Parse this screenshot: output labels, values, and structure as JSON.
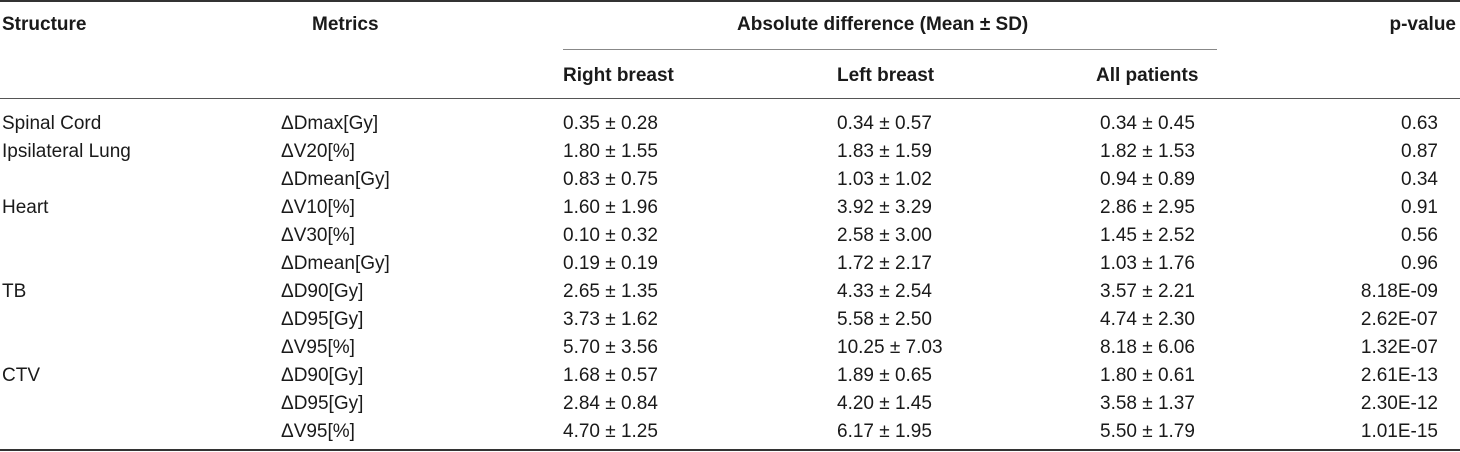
{
  "table": {
    "headers": {
      "structure": "Structure",
      "metrics": "Metrics",
      "group": "Absolute difference (Mean ± SD)",
      "pvalue": "p-value",
      "right_breast": "Right breast",
      "left_breast": "Left breast",
      "all_patients": "All patients"
    },
    "rows": [
      {
        "structure": "Spinal Cord",
        "metric": "ΔDmax[Gy]",
        "right": "0.35 ± 0.28",
        "left": "0.34 ± 0.57",
        "all": "0.34 ± 0.45",
        "p": "0.63"
      },
      {
        "structure": "Ipsilateral Lung",
        "metric": "ΔV20[%]",
        "right": "1.80 ± 1.55",
        "left": "1.83 ± 1.59",
        "all": "1.82 ± 1.53",
        "p": "0.87"
      },
      {
        "structure": "",
        "metric": "ΔDmean[Gy]",
        "right": "0.83 ± 0.75",
        "left": "1.03 ± 1.02",
        "all": "0.94 ± 0.89",
        "p": "0.34"
      },
      {
        "structure": "Heart",
        "metric": "ΔV10[%]",
        "right": "1.60 ± 1.96",
        "left": "3.92 ± 3.29",
        "all": "2.86 ± 2.95",
        "p": "0.91"
      },
      {
        "structure": "",
        "metric": "ΔV30[%]",
        "right": "0.10 ± 0.32",
        "left": "2.58 ± 3.00",
        "all": "1.45 ± 2.52",
        "p": "0.56"
      },
      {
        "structure": "",
        "metric": "ΔDmean[Gy]",
        "right": "0.19 ± 0.19",
        "left": "1.72 ± 2.17",
        "all": "1.03 ± 1.76",
        "p": "0.96"
      },
      {
        "structure": "TB",
        "metric": "ΔD90[Gy]",
        "right": "2.65 ± 1.35",
        "left": "4.33 ± 2.54",
        "all": "3.57 ± 2.21",
        "p": "8.18E-09"
      },
      {
        "structure": "",
        "metric": "ΔD95[Gy]",
        "right": "3.73 ± 1.62",
        "left": "5.58 ± 2.50",
        "all": "4.74 ± 2.30",
        "p": "2.62E-07"
      },
      {
        "structure": "",
        "metric": "ΔV95[%]",
        "right": "5.70 ± 3.56",
        "left": "10.25 ± 7.03",
        "all": "8.18 ± 6.06",
        "p": "1.32E-07"
      },
      {
        "structure": "CTV",
        "metric": "ΔD90[Gy]",
        "right": "1.68 ± 0.57",
        "left": "1.89 ± 0.65",
        "all": "1.80 ± 0.61",
        "p": "2.61E-13"
      },
      {
        "structure": "",
        "metric": "ΔD95[Gy]",
        "right": "2.84 ± 0.84",
        "left": "4.20 ± 1.45",
        "all": "3.58 ± 1.37",
        "p": "2.30E-12"
      },
      {
        "structure": "",
        "metric": "ΔV95[%]",
        "right": "4.70 ± 1.25",
        "left": "6.17 ± 1.95",
        "all": "5.50 ± 1.79",
        "p": "1.01E-15"
      }
    ]
  }
}
